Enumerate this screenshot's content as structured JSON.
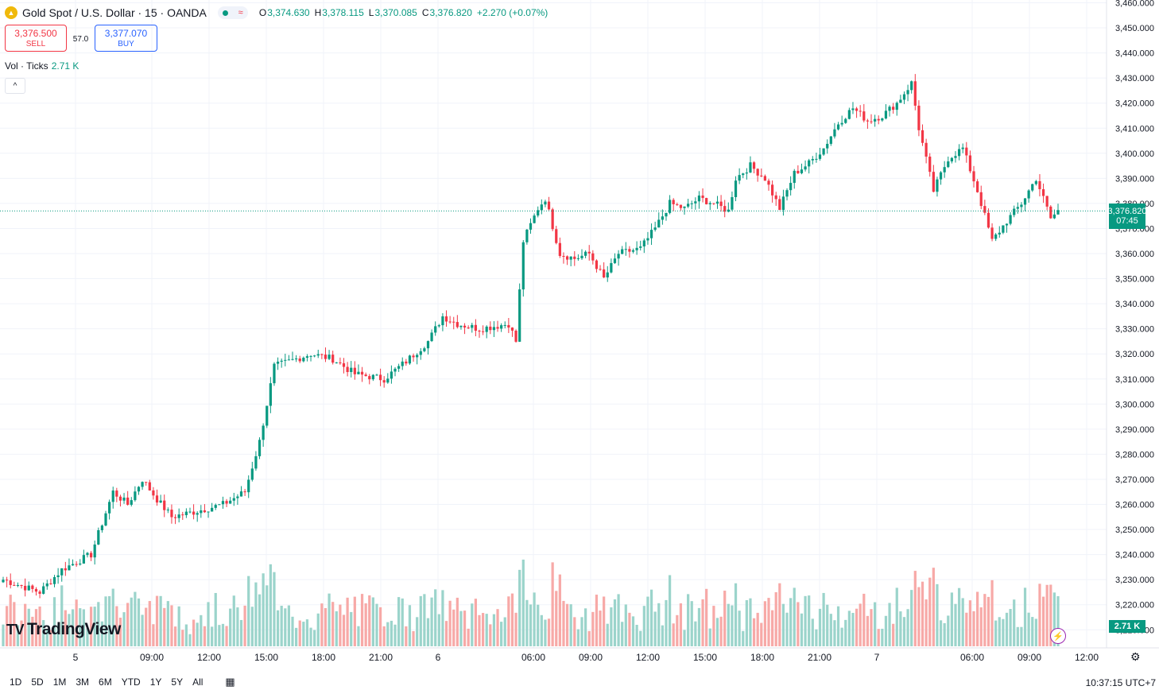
{
  "header": {
    "title": "Gold Spot / U.S. Dollar · 15 · OANDA",
    "ohlc": {
      "o_label": "O",
      "o": "3,374.630",
      "h_label": "H",
      "h": "3,378.115",
      "l_label": "L",
      "l": "3,370.085",
      "c_label": "C",
      "c": "3,376.820",
      "change": "+2.270 (+0.07%)"
    }
  },
  "trade": {
    "sell_price": "3,376.500",
    "sell_label": "SELL",
    "spread": "57.0",
    "buy_price": "3,377.070",
    "buy_label": "BUY"
  },
  "volume_legend": {
    "label": "Vol · Ticks",
    "value": "2.71 K"
  },
  "price_tag": {
    "price": "3,376.820",
    "countdown": "07:45"
  },
  "volume_tag": "2.71 K",
  "branding": "TradingView",
  "bottom_bar": {
    "ranges": [
      "1D",
      "5D",
      "1M",
      "3M",
      "6M",
      "YTD",
      "1Y",
      "5Y",
      "All"
    ],
    "clock": "10:37:15 UTC+7"
  },
  "colors": {
    "up": "#089981",
    "down": "#f23645",
    "vol_up": "#9bd4cb",
    "vol_down": "#f7a9a7"
  },
  "chart_data": {
    "type": "candlestick",
    "y_ticks": [
      "3,460.000",
      "3,450.000",
      "3,440.000",
      "3,430.000",
      "3,420.000",
      "3,410.000",
      "3,400.000",
      "3,390.000",
      "3,380.000",
      "3,370.000",
      "3,360.000",
      "3,350.000",
      "3,340.000",
      "3,330.000",
      "3,320.000",
      "3,310.000",
      "3,300.000",
      "3,290.000",
      "3,280.000",
      "3,270.000",
      "3,260.000",
      "3,250.000",
      "3,240.000",
      "3,230.000",
      "3,220.000",
      "3,210.000"
    ],
    "ylim": [
      3210,
      3460
    ],
    "x_ticks": [
      "5",
      "09:00",
      "12:00",
      "15:00",
      "18:00",
      "21:00",
      "6",
      "06:00",
      "09:00",
      "12:00",
      "15:00",
      "18:00",
      "21:00",
      "7",
      "06:00",
      "09:00",
      "12:00"
    ],
    "close_path": [
      [
        0,
        3230
      ],
      [
        5,
        3225
      ],
      [
        8,
        3234
      ],
      [
        12,
        3240
      ],
      [
        15,
        3265
      ],
      [
        17,
        3260
      ],
      [
        19,
        3270
      ],
      [
        21,
        3262
      ],
      [
        23,
        3255
      ],
      [
        26,
        3257
      ],
      [
        30,
        3260
      ],
      [
        33,
        3265
      ],
      [
        35,
        3285
      ],
      [
        37,
        3315
      ],
      [
        40,
        3318
      ],
      [
        42,
        3320
      ],
      [
        45,
        3318
      ],
      [
        48,
        3312
      ],
      [
        52,
        3310
      ],
      [
        55,
        3317
      ],
      [
        58,
        3325
      ],
      [
        60,
        3335
      ],
      [
        62,
        3332
      ],
      [
        65,
        3330
      ],
      [
        69,
        3332
      ],
      [
        70,
        3325
      ],
      [
        71,
        3365
      ],
      [
        73,
        3378
      ],
      [
        74,
        3382
      ],
      [
        76,
        3360
      ],
      [
        78,
        3358
      ],
      [
        80,
        3360
      ],
      [
        82,
        3350
      ],
      [
        84,
        3360
      ],
      [
        87,
        3362
      ],
      [
        89,
        3370
      ],
      [
        91,
        3380
      ],
      [
        93,
        3378
      ],
      [
        95,
        3382
      ],
      [
        97,
        3380
      ],
      [
        99,
        3377
      ],
      [
        100,
        3390
      ],
      [
        102,
        3395
      ],
      [
        104,
        3390
      ],
      [
        106,
        3378
      ],
      [
        108,
        3392
      ],
      [
        110,
        3396
      ],
      [
        112,
        3402
      ],
      [
        114,
        3412
      ],
      [
        116,
        3418
      ],
      [
        118,
        3413
      ],
      [
        120,
        3415
      ],
      [
        122,
        3420
      ],
      [
        124,
        3428
      ],
      [
        125,
        3410
      ],
      [
        127,
        3385
      ],
      [
        129,
        3398
      ],
      [
        131,
        3402
      ],
      [
        133,
        3385
      ],
      [
        135,
        3365
      ],
      [
        137,
        3373
      ],
      [
        139,
        3380
      ],
      [
        141,
        3390
      ],
      [
        143,
        3374
      ],
      [
        144,
        3377
      ]
    ]
  }
}
